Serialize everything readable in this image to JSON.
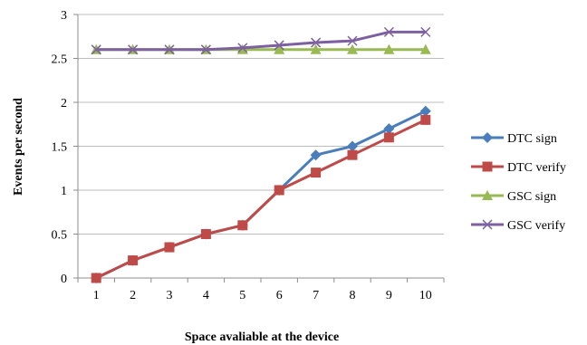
{
  "chart_data": {
    "type": "line",
    "title": "",
    "xlabel": "Space avaliable at the device",
    "ylabel": "Events per second",
    "x": [
      1,
      2,
      3,
      4,
      5,
      6,
      7,
      8,
      9,
      10
    ],
    "x_tick_labels": [
      "1",
      "2",
      "3",
      "4",
      "5",
      "6",
      "7",
      "8",
      "9",
      "10"
    ],
    "y_tick_labels": [
      "0",
      "0.5",
      "1",
      "1.5",
      "2",
      "2.5",
      "3"
    ],
    "ylim": [
      0,
      3
    ],
    "grid": "horizontal",
    "legend": "right",
    "series": [
      {
        "name": "DTC sign",
        "color": "#4a7ebb",
        "marker": "diamond",
        "values": [
          0,
          0.2,
          0.35,
          0.5,
          0.6,
          1.0,
          1.4,
          1.5,
          1.7,
          1.9
        ]
      },
      {
        "name": "DTC verify",
        "color": "#be4b48",
        "marker": "square",
        "values": [
          0,
          0.2,
          0.35,
          0.5,
          0.6,
          1.0,
          1.2,
          1.4,
          1.6,
          1.8
        ]
      },
      {
        "name": "GSC sign",
        "color": "#98b954",
        "marker": "triangle",
        "values": [
          2.6,
          2.6,
          2.6,
          2.6,
          2.6,
          2.6,
          2.6,
          2.6,
          2.6,
          2.6
        ]
      },
      {
        "name": "GSC verify",
        "color": "#7d60a0",
        "marker": "x",
        "values": [
          2.6,
          2.6,
          2.6,
          2.6,
          2.62,
          2.65,
          2.68,
          2.7,
          2.8,
          2.8
        ]
      }
    ]
  }
}
